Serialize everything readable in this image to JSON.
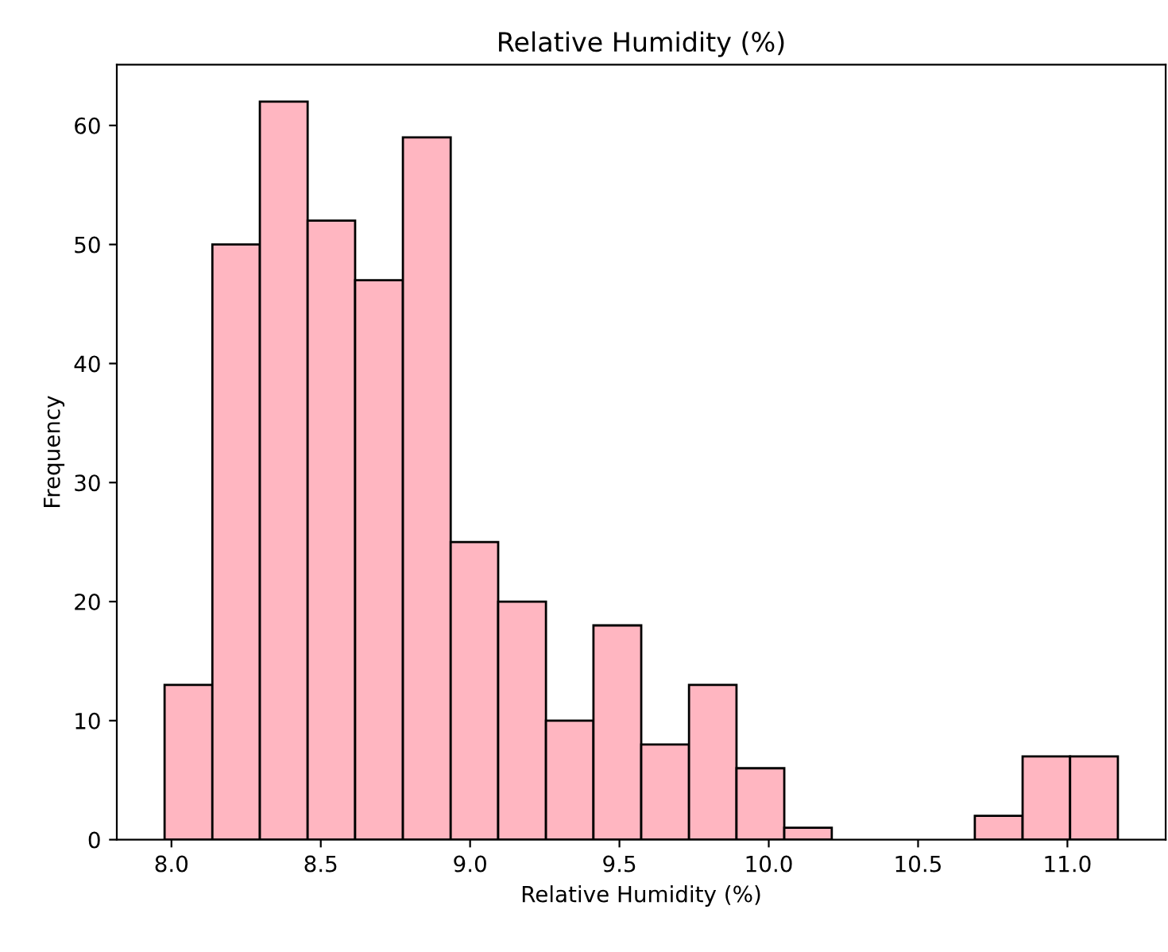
{
  "chart_data": {
    "type": "histogram",
    "title": "Relative Humidity (%)",
    "xlabel": "Relative Humidity (%)",
    "ylabel": "Frequency",
    "bins": [
      7.977,
      8.137,
      8.296,
      8.456,
      8.615,
      8.775,
      8.935,
      9.094,
      9.254,
      9.413,
      9.573,
      9.733,
      9.892,
      10.052,
      10.211,
      10.371,
      10.531,
      10.69,
      10.85,
      11.009,
      11.169
    ],
    "values": [
      13,
      50,
      62,
      52,
      47,
      59,
      25,
      20,
      10,
      18,
      8,
      13,
      6,
      1,
      0,
      0,
      0,
      2,
      7,
      7
    ],
    "color": "#ffb6c1",
    "xlim": [
      7.817,
      11.329
    ],
    "ylim": [
      0,
      65.1
    ],
    "xticks": [
      {
        "value": 8.0,
        "label": "8.0"
      },
      {
        "value": 8.5,
        "label": "8.5"
      },
      {
        "value": 9.0,
        "label": "9.0"
      },
      {
        "value": 9.5,
        "label": "9.5"
      },
      {
        "value": 10.0,
        "label": "10.0"
      },
      {
        "value": 10.5,
        "label": "10.5"
      },
      {
        "value": 11.0,
        "label": "11.0"
      }
    ],
    "yticks": [
      0,
      10,
      20,
      30,
      40,
      50,
      60
    ],
    "grid": false
  }
}
